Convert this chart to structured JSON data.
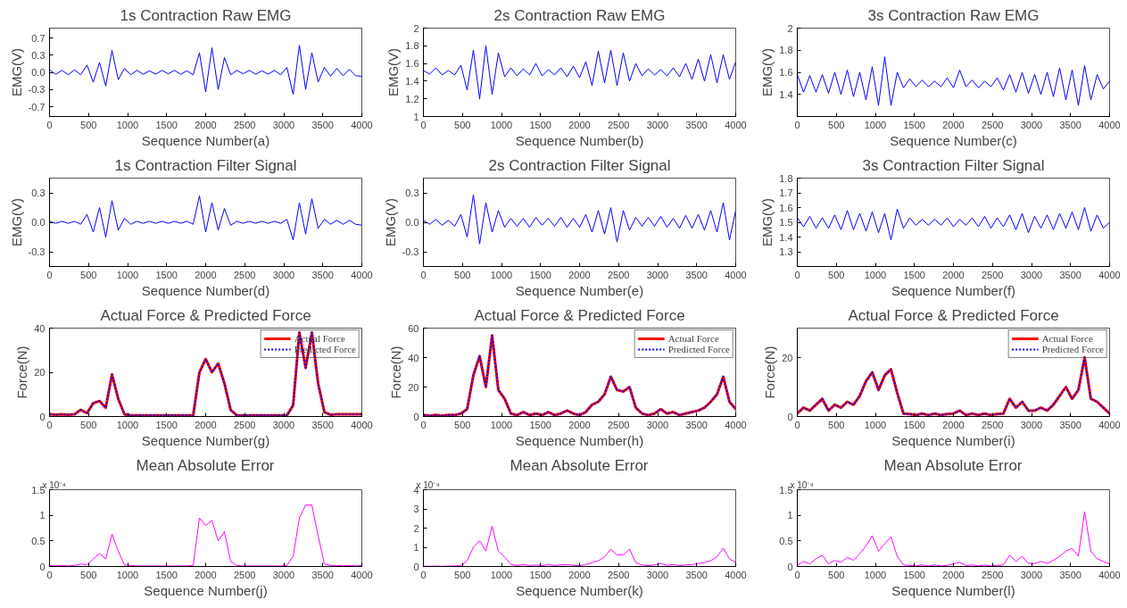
{
  "chart_data": [
    {
      "type": "line",
      "title": "1s Contraction Raw EMG",
      "xlabel": "Sequence Number(a)",
      "ylabel": "EMG(V)",
      "xlim": [
        0,
        4000
      ],
      "xticks": [
        0,
        500,
        1000,
        1500,
        2000,
        2500,
        3000,
        3500,
        4000
      ],
      "ylim": [
        -0.9,
        0.9
      ],
      "yticks": [
        {
          "value": -0.7,
          "label": "-0.7"
        },
        {
          "value": -0.35,
          "label": "-0.3"
        },
        {
          "value": 0,
          "label": "0.0"
        },
        {
          "value": 0.35,
          "label": "0.3"
        },
        {
          "value": 0.7,
          "label": "0.7"
        }
      ],
      "grid": false,
      "legend": false,
      "x": [
        0,
        80,
        160,
        240,
        320,
        400,
        480,
        560,
        640,
        720,
        800,
        880,
        960,
        1040,
        1120,
        1200,
        1280,
        1360,
        1440,
        1520,
        1600,
        1680,
        1760,
        1840,
        1920,
        2000,
        2080,
        2160,
        2240,
        2320,
        2400,
        2480,
        2560,
        2640,
        2720,
        2800,
        2880,
        2960,
        3040,
        3120,
        3200,
        3280,
        3360,
        3440,
        3520,
        3600,
        3680,
        3760,
        3840,
        3920,
        4000
      ],
      "series": [
        {
          "color": "#0000ff",
          "values": [
            0.05,
            -0.04,
            0.04,
            -0.05,
            0.05,
            -0.05,
            0.15,
            -0.2,
            0.2,
            -0.28,
            0.45,
            -0.15,
            0.08,
            -0.05,
            0.04,
            -0.04,
            0.03,
            -0.04,
            0.04,
            -0.03,
            0.04,
            -0.04,
            0.03,
            -0.05,
            0.4,
            -0.4,
            0.5,
            -0.35,
            0.3,
            -0.05,
            0.04,
            -0.03,
            0.04,
            -0.04,
            0.03,
            -0.04,
            0.04,
            -0.05,
            0.1,
            -0.45,
            0.55,
            -0.35,
            0.4,
            -0.2,
            0.1,
            -0.08,
            0.08,
            -0.07,
            0.06,
            -0.07,
            -0.08
          ]
        }
      ]
    },
    {
      "type": "line",
      "title": "2s Contraction Raw EMG",
      "xlabel": "Sequence Number(b)",
      "ylabel": "EMG(V)",
      "xlim": [
        0,
        4000
      ],
      "xticks": [
        0,
        500,
        1000,
        1500,
        2000,
        2500,
        3000,
        3500,
        4000
      ],
      "ylim": [
        1,
        2
      ],
      "yticks": [
        1,
        1.2,
        1.4,
        1.6,
        1.8,
        2
      ],
      "grid": false,
      "legend": false,
      "x": [
        0,
        80,
        160,
        240,
        320,
        400,
        480,
        560,
        640,
        720,
        800,
        880,
        960,
        1040,
        1120,
        1200,
        1280,
        1360,
        1440,
        1520,
        1600,
        1680,
        1760,
        1840,
        1920,
        2000,
        2080,
        2160,
        2240,
        2320,
        2400,
        2480,
        2560,
        2640,
        2720,
        2800,
        2880,
        2960,
        3040,
        3120,
        3200,
        3280,
        3360,
        3440,
        3520,
        3600,
        3680,
        3760,
        3840,
        3920,
        4000
      ],
      "series": [
        {
          "color": "#0000ff",
          "values": [
            1.52,
            1.48,
            1.55,
            1.47,
            1.52,
            1.47,
            1.58,
            1.3,
            1.75,
            1.2,
            1.8,
            1.25,
            1.72,
            1.45,
            1.55,
            1.46,
            1.54,
            1.47,
            1.6,
            1.46,
            1.53,
            1.47,
            1.55,
            1.45,
            1.57,
            1.44,
            1.62,
            1.35,
            1.74,
            1.38,
            1.75,
            1.35,
            1.72,
            1.4,
            1.6,
            1.46,
            1.54,
            1.47,
            1.53,
            1.46,
            1.55,
            1.45,
            1.6,
            1.42,
            1.65,
            1.4,
            1.7,
            1.38,
            1.7,
            1.42,
            1.62
          ]
        }
      ]
    },
    {
      "type": "line",
      "title": "3s Contraction Raw EMG",
      "xlabel": "Sequence Number(c)",
      "ylabel": "EMG(V)",
      "xlim": [
        0,
        4000
      ],
      "xticks": [
        0,
        500,
        1000,
        1500,
        2000,
        2500,
        3000,
        3500,
        4000
      ],
      "ylim": [
        1.2,
        2
      ],
      "yticks": [
        1.4,
        1.6,
        1.8,
        2
      ],
      "grid": false,
      "legend": false,
      "x": [
        0,
        80,
        160,
        240,
        320,
        400,
        480,
        560,
        640,
        720,
        800,
        880,
        960,
        1040,
        1120,
        1200,
        1280,
        1360,
        1440,
        1520,
        1600,
        1680,
        1760,
        1840,
        1920,
        2000,
        2080,
        2160,
        2240,
        2320,
        2400,
        2480,
        2560,
        2640,
        2720,
        2800,
        2880,
        2960,
        3040,
        3120,
        3200,
        3280,
        3360,
        3440,
        3520,
        3600,
        3680,
        3760,
        3840,
        3920,
        4000
      ],
      "series": [
        {
          "color": "#0000ff",
          "values": [
            1.58,
            1.42,
            1.57,
            1.42,
            1.58,
            1.41,
            1.6,
            1.4,
            1.62,
            1.38,
            1.6,
            1.35,
            1.65,
            1.3,
            1.74,
            1.3,
            1.6,
            1.46,
            1.54,
            1.47,
            1.53,
            1.47,
            1.52,
            1.47,
            1.55,
            1.46,
            1.62,
            1.47,
            1.53,
            1.46,
            1.52,
            1.47,
            1.55,
            1.44,
            1.58,
            1.42,
            1.6,
            1.41,
            1.58,
            1.4,
            1.6,
            1.38,
            1.64,
            1.35,
            1.62,
            1.3,
            1.66,
            1.35,
            1.58,
            1.45,
            1.52
          ]
        }
      ]
    },
    {
      "type": "line",
      "title": "1s Contraction Filter Signal",
      "xlabel": "Sequence Number(d)",
      "ylabel": "EMG(V)",
      "xlim": [
        0,
        4000
      ],
      "xticks": [
        0,
        500,
        1000,
        1500,
        2000,
        2500,
        3000,
        3500,
        4000
      ],
      "ylim": [
        -0.45,
        0.45
      ],
      "yticks": [
        {
          "value": -0.3,
          "label": "-0.3"
        },
        {
          "value": 0,
          "label": "0.0"
        },
        {
          "value": 0.3,
          "label": "0.3"
        }
      ],
      "grid": false,
      "legend": false,
      "x": [
        0,
        80,
        160,
        240,
        320,
        400,
        480,
        560,
        640,
        720,
        800,
        880,
        960,
        1040,
        1120,
        1200,
        1280,
        1360,
        1440,
        1520,
        1600,
        1680,
        1760,
        1840,
        1920,
        2000,
        2080,
        2160,
        2240,
        2320,
        2400,
        2480,
        2560,
        2640,
        2720,
        2800,
        2880,
        2960,
        3040,
        3120,
        3200,
        3280,
        3360,
        3440,
        3520,
        3600,
        3680,
        3760,
        3840,
        3920,
        4000
      ],
      "series": [
        {
          "color": "#0000ff",
          "values": [
            0.01,
            -0.01,
            0.01,
            -0.01,
            0.01,
            -0.02,
            0.08,
            -0.1,
            0.15,
            -0.15,
            0.22,
            -0.08,
            0.04,
            -0.02,
            0.01,
            -0.01,
            0.01,
            -0.01,
            0.01,
            -0.01,
            0.01,
            -0.01,
            0.01,
            -0.02,
            0.27,
            -0.1,
            0.2,
            -0.08,
            0.14,
            -0.03,
            0.01,
            -0.01,
            0.01,
            -0.01,
            0.01,
            -0.01,
            0.01,
            -0.01,
            0.03,
            -0.18,
            0.2,
            -0.12,
            0.24,
            -0.06,
            0.03,
            -0.02,
            0.02,
            -0.02,
            0.02,
            -0.02,
            -0.03
          ]
        }
      ]
    },
    {
      "type": "line",
      "title": "2s Contraction Filter Signal",
      "xlabel": "Sequence Number(e)",
      "ylabel": "EMG(V)",
      "xlim": [
        0,
        4000
      ],
      "xticks": [
        0,
        500,
        1000,
        1500,
        2000,
        2500,
        3000,
        3500,
        4000
      ],
      "ylim": [
        -0.45,
        0.45
      ],
      "yticks": [
        {
          "value": -0.3,
          "label": "-0.3"
        },
        {
          "value": 0,
          "label": "0.0"
        },
        {
          "value": 0.3,
          "label": "0.3"
        }
      ],
      "grid": false,
      "legend": false,
      "x": [
        0,
        80,
        160,
        240,
        320,
        400,
        480,
        560,
        640,
        720,
        800,
        880,
        960,
        1040,
        1120,
        1200,
        1280,
        1360,
        1440,
        1520,
        1600,
        1680,
        1760,
        1840,
        1920,
        2000,
        2080,
        2160,
        2240,
        2320,
        2400,
        2480,
        2560,
        2640,
        2720,
        2800,
        2880,
        2960,
        3040,
        3120,
        3200,
        3280,
        3360,
        3440,
        3520,
        3600,
        3680,
        3760,
        3840,
        3920,
        4000
      ],
      "series": [
        {
          "color": "#0000ff",
          "values": [
            0.02,
            -0.02,
            0.03,
            -0.03,
            0.02,
            -0.04,
            0.08,
            -0.15,
            0.28,
            -0.22,
            0.2,
            -0.1,
            0.12,
            -0.05,
            0.04,
            -0.04,
            0.04,
            -0.05,
            0.05,
            -0.03,
            0.04,
            -0.04,
            0.05,
            -0.05,
            0.04,
            -0.05,
            0.08,
            -0.1,
            0.12,
            -0.12,
            0.15,
            -0.2,
            0.12,
            -0.08,
            0.05,
            -0.04,
            0.05,
            -0.04,
            0.06,
            -0.05,
            0.04,
            -0.06,
            0.07,
            -0.06,
            0.08,
            -0.08,
            0.12,
            -0.1,
            0.2,
            -0.18,
            0.12
          ]
        }
      ]
    },
    {
      "type": "line",
      "title": "3s Contraction Filter Signal",
      "xlabel": "Sequence Number(f)",
      "ylabel": "EMG(V)",
      "xlim": [
        0,
        4000
      ],
      "xticks": [
        0,
        500,
        1000,
        1500,
        2000,
        2500,
        3000,
        3500,
        4000
      ],
      "ylim": [
        1.2,
        1.8
      ],
      "yticks": [
        1.3,
        1.4,
        1.5,
        1.6,
        1.7,
        1.8
      ],
      "grid": false,
      "legend": false,
      "x": [
        0,
        80,
        160,
        240,
        320,
        400,
        480,
        560,
        640,
        720,
        800,
        880,
        960,
        1040,
        1120,
        1200,
        1280,
        1360,
        1440,
        1520,
        1600,
        1680,
        1760,
        1840,
        1920,
        2000,
        2080,
        2160,
        2240,
        2320,
        2400,
        2480,
        2560,
        2640,
        2720,
        2800,
        2880,
        2960,
        3040,
        3120,
        3200,
        3280,
        3360,
        3440,
        3520,
        3600,
        3680,
        3760,
        3840,
        3920,
        4000
      ],
      "series": [
        {
          "color": "#0000ff",
          "values": [
            1.53,
            1.47,
            1.54,
            1.46,
            1.53,
            1.46,
            1.55,
            1.45,
            1.58,
            1.45,
            1.56,
            1.44,
            1.57,
            1.43,
            1.56,
            1.38,
            1.59,
            1.46,
            1.53,
            1.48,
            1.52,
            1.48,
            1.52,
            1.48,
            1.53,
            1.47,
            1.52,
            1.48,
            1.53,
            1.47,
            1.54,
            1.46,
            1.53,
            1.47,
            1.55,
            1.45,
            1.56,
            1.43,
            1.54,
            1.46,
            1.55,
            1.45,
            1.56,
            1.46,
            1.57,
            1.45,
            1.6,
            1.44,
            1.55,
            1.46,
            1.5
          ]
        }
      ]
    },
    {
      "type": "line",
      "title": "Actual Force & Predicted Force",
      "xlabel": "Sequence Number(g)",
      "ylabel": "Force(N)",
      "xlim": [
        0,
        4000
      ],
      "xticks": [
        0,
        500,
        1000,
        1500,
        2000,
        2500,
        3000,
        3500,
        4000
      ],
      "ylim": [
        0,
        40
      ],
      "yticks": [
        0,
        20,
        40
      ],
      "grid": false,
      "legend": "top right",
      "x": [
        0,
        80,
        160,
        240,
        320,
        400,
        480,
        560,
        640,
        720,
        800,
        880,
        960,
        1040,
        1120,
        1200,
        1280,
        1360,
        1440,
        1520,
        1600,
        1680,
        1760,
        1840,
        1920,
        2000,
        2080,
        2160,
        2240,
        2320,
        2400,
        2480,
        2560,
        2640,
        2720,
        2800,
        2880,
        2960,
        3040,
        3120,
        3200,
        3280,
        3360,
        3440,
        3520,
        3600,
        3680,
        3760,
        3840,
        3920,
        4000
      ],
      "series": [
        {
          "name": "Actual Force",
          "color": "#ff0000",
          "line_style": "solid",
          "values": [
            1,
            0.8,
            1,
            0.8,
            1,
            3,
            1.5,
            6,
            7,
            4,
            19,
            8,
            1,
            0.5,
            0.5,
            0.5,
            0.5,
            0.5,
            0.5,
            0.5,
            0.5,
            0.5,
            0.5,
            0.5,
            20,
            26,
            20,
            24,
            15,
            3,
            0.5,
            0.5,
            0.5,
            0.5,
            0.5,
            0.5,
            0.5,
            0.5,
            0.5,
            5,
            38,
            22,
            38,
            15,
            2,
            0.8,
            1,
            1,
            1,
            1,
            1
          ]
        },
        {
          "name": "Predicted Force",
          "color": "#0000ff",
          "line_style": "dotted",
          "values": [
            1,
            0.8,
            1,
            0.8,
            1,
            3,
            1.5,
            6,
            7,
            4,
            19,
            8,
            1,
            0.5,
            0.5,
            0.5,
            0.5,
            0.5,
            0.5,
            0.5,
            0.5,
            0.5,
            0.5,
            0.5,
            20,
            26,
            20,
            24,
            15,
            3,
            0.5,
            0.5,
            0.5,
            0.5,
            0.5,
            0.5,
            0.5,
            0.5,
            0.5,
            5,
            38,
            22,
            38,
            15,
            2,
            0.8,
            1,
            1,
            1,
            1,
            1
          ]
        }
      ]
    },
    {
      "type": "line",
      "title": "Actual Force & Predicted Force",
      "xlabel": "Sequence Number(h)",
      "ylabel": "Force(N)",
      "xlim": [
        0,
        4000
      ],
      "xticks": [
        0,
        500,
        1000,
        1500,
        2000,
        2500,
        3000,
        3500,
        4000
      ],
      "ylim": [
        0,
        60
      ],
      "yticks": [
        0,
        20,
        40,
        60
      ],
      "grid": false,
      "legend": "top right",
      "x": [
        0,
        80,
        160,
        240,
        320,
        400,
        480,
        560,
        640,
        720,
        800,
        880,
        960,
        1040,
        1120,
        1200,
        1280,
        1360,
        1440,
        1520,
        1600,
        1680,
        1760,
        1840,
        1920,
        2000,
        2080,
        2160,
        2240,
        2320,
        2400,
        2480,
        2560,
        2640,
        2720,
        2800,
        2880,
        2960,
        3040,
        3120,
        3200,
        3280,
        3360,
        3440,
        3520,
        3600,
        3680,
        3760,
        3840,
        3920,
        4000
      ],
      "series": [
        {
          "name": "Actual Force",
          "color": "#ff0000",
          "line_style": "solid",
          "values": [
            1,
            0.5,
            1,
            0.5,
            1,
            1,
            2,
            5,
            28,
            41,
            20,
            55,
            18,
            12,
            2,
            1,
            3,
            1,
            2,
            1,
            3,
            1,
            2,
            4,
            2,
            1,
            3,
            8,
            10,
            15,
            27,
            18,
            17,
            20,
            6,
            2,
            1,
            2,
            5,
            2,
            3,
            1,
            2,
            3,
            4,
            6,
            10,
            15,
            27,
            10,
            5
          ]
        },
        {
          "name": "Predicted Force",
          "color": "#0000ff",
          "line_style": "dotted",
          "values": [
            1,
            0.5,
            1,
            0.5,
            1,
            1,
            2,
            5,
            28,
            41,
            20,
            55,
            18,
            12,
            2,
            1,
            3,
            1,
            2,
            1,
            3,
            1,
            2,
            4,
            2,
            1,
            3,
            8,
            10,
            15,
            27,
            18,
            17,
            20,
            6,
            2,
            1,
            2,
            5,
            2,
            3,
            1,
            2,
            3,
            4,
            6,
            10,
            15,
            27,
            10,
            5
          ]
        }
      ]
    },
    {
      "type": "line",
      "title": "Actual Force & Predicted Force",
      "xlabel": "Sequence Number(i)",
      "ylabel": "Force(N)",
      "xlim": [
        0,
        4000
      ],
      "xticks": [
        0,
        500,
        1000,
        1500,
        2000,
        2500,
        3000,
        3500,
        4000
      ],
      "ylim": [
        0,
        30
      ],
      "yticks": [
        0,
        20
      ],
      "grid": false,
      "legend": "top right",
      "x": [
        0,
        80,
        160,
        240,
        320,
        400,
        480,
        560,
        640,
        720,
        800,
        880,
        960,
        1040,
        1120,
        1200,
        1280,
        1360,
        1440,
        1520,
        1600,
        1680,
        1760,
        1840,
        1920,
        2000,
        2080,
        2160,
        2240,
        2320,
        2400,
        2480,
        2560,
        2640,
        2720,
        2800,
        2880,
        2960,
        3040,
        3120,
        3200,
        3280,
        3360,
        3440,
        3520,
        3600,
        3680,
        3760,
        3840,
        3920,
        4000
      ],
      "series": [
        {
          "name": "Actual Force",
          "color": "#ff0000",
          "line_style": "solid",
          "values": [
            1,
            3,
            2,
            4,
            6,
            2,
            4,
            3,
            5,
            4,
            7,
            12,
            15,
            9,
            14,
            16,
            8,
            1,
            0.8,
            0.5,
            1,
            0.5,
            1,
            0.5,
            0.8,
            1,
            2,
            0.5,
            1,
            0.5,
            1,
            0.5,
            0.8,
            1,
            6,
            3,
            5,
            2,
            2,
            3,
            2,
            4,
            7,
            10,
            6,
            9,
            20,
            6,
            5,
            3,
            1
          ]
        },
        {
          "name": "Predicted Force",
          "color": "#0000ff",
          "line_style": "dotted",
          "values": [
            1,
            3,
            2,
            4,
            6,
            2,
            4,
            3,
            5,
            4,
            7,
            12,
            15,
            9,
            14,
            16,
            8,
            1,
            0.8,
            0.5,
            1,
            0.5,
            1,
            0.5,
            0.8,
            1,
            2,
            0.5,
            1,
            0.5,
            1,
            0.5,
            0.8,
            1,
            6,
            3,
            5,
            2,
            2,
            3,
            2,
            4,
            7,
            10,
            6,
            9,
            20,
            6,
            5,
            3,
            1
          ]
        }
      ]
    },
    {
      "type": "line",
      "title": "Mean Absolute Error",
      "xlabel": "Sequence Number(j)",
      "xlim": [
        0,
        4000
      ],
      "xticks": [
        0,
        500,
        1000,
        1500,
        2000,
        2500,
        3000,
        3500,
        4000
      ],
      "ylim": [
        0,
        1.5
      ],
      "yticks": [
        0,
        0.5,
        1,
        1.5
      ],
      "grid": false,
      "legend": false,
      "annotations": [
        "x 10⁻⁴"
      ],
      "x": [
        0,
        80,
        160,
        240,
        320,
        400,
        480,
        560,
        640,
        720,
        800,
        880,
        960,
        1040,
        1120,
        1200,
        1280,
        1360,
        1440,
        1520,
        1600,
        1680,
        1760,
        1840,
        1920,
        2000,
        2080,
        2160,
        2240,
        2320,
        2400,
        2480,
        2560,
        2640,
        2720,
        2800,
        2880,
        2960,
        3040,
        3120,
        3200,
        3280,
        3360,
        3440,
        3520,
        3600,
        3680,
        3760,
        3840,
        3920,
        4000
      ],
      "series": [
        {
          "color": "#ff00ff",
          "values": [
            0.02,
            0.01,
            0.02,
            0.01,
            0.02,
            0.05,
            0.03,
            0.15,
            0.25,
            0.15,
            0.63,
            0.3,
            0.03,
            0.02,
            0.01,
            0.01,
            0.01,
            0.01,
            0.01,
            0.01,
            0.01,
            0.01,
            0.01,
            0.02,
            0.95,
            0.8,
            0.9,
            0.5,
            0.68,
            0.1,
            0.02,
            0.01,
            0.01,
            0.01,
            0.01,
            0.01,
            0.01,
            0.01,
            0.02,
            0.2,
            0.95,
            1.2,
            1.2,
            0.6,
            0.05,
            0.02,
            0.02,
            0.01,
            0.02,
            0.01,
            0.02
          ]
        }
      ]
    },
    {
      "type": "line",
      "title": "Mean Absolute Error",
      "xlabel": "Sequence Number(k)",
      "xlim": [
        0,
        4000
      ],
      "xticks": [
        0,
        500,
        1000,
        1500,
        2000,
        2500,
        3000,
        3500,
        4000
      ],
      "ylim": [
        0,
        4
      ],
      "yticks": [
        0,
        1,
        2,
        3,
        4
      ],
      "grid": false,
      "legend": false,
      "annotations": [
        "x 10⁻⁴"
      ],
      "x": [
        0,
        80,
        160,
        240,
        320,
        400,
        480,
        560,
        640,
        720,
        800,
        880,
        960,
        1040,
        1120,
        1200,
        1280,
        1360,
        1440,
        1520,
        1600,
        1680,
        1760,
        1840,
        1920,
        2000,
        2080,
        2160,
        2240,
        2320,
        2400,
        2480,
        2560,
        2640,
        2720,
        2800,
        2880,
        2960,
        3040,
        3120,
        3200,
        3280,
        3360,
        3440,
        3520,
        3600,
        3680,
        3760,
        3840,
        3920,
        4000
      ],
      "series": [
        {
          "color": "#ff00ff",
          "values": [
            0.02,
            0.01,
            0.02,
            0.01,
            0.02,
            0.03,
            0.05,
            0.3,
            1,
            1.35,
            0.8,
            2.1,
            0.8,
            0.5,
            0.1,
            0.05,
            0.1,
            0.05,
            0.08,
            0.04,
            0.1,
            0.05,
            0.08,
            0.1,
            0.06,
            0.04,
            0.1,
            0.2,
            0.3,
            0.5,
            0.9,
            0.6,
            0.6,
            0.9,
            0.2,
            0.08,
            0.05,
            0.08,
            0.15,
            0.06,
            0.1,
            0.05,
            0.08,
            0.1,
            0.15,
            0.2,
            0.3,
            0.5,
            0.95,
            0.4,
            0.2
          ]
        }
      ]
    },
    {
      "type": "line",
      "title": "Mean Absolute Error",
      "xlabel": "Sequence Number(l)",
      "xlim": [
        0,
        4000
      ],
      "xticks": [
        0,
        500,
        1000,
        1500,
        2000,
        2500,
        3000,
        3500,
        4000
      ],
      "ylim": [
        0,
        1.5
      ],
      "yticks": [
        0,
        0.5,
        1,
        1.5
      ],
      "grid": false,
      "legend": false,
      "annotations": [
        "x 10⁻⁴"
      ],
      "x": [
        0,
        80,
        160,
        240,
        320,
        400,
        480,
        560,
        640,
        720,
        800,
        880,
        960,
        1040,
        1120,
        1200,
        1280,
        1360,
        1440,
        1520,
        1600,
        1680,
        1760,
        1840,
        1920,
        2000,
        2080,
        2160,
        2240,
        2320,
        2400,
        2480,
        2560,
        2640,
        2720,
        2800,
        2880,
        2960,
        3040,
        3120,
        3200,
        3280,
        3360,
        3440,
        3520,
        3600,
        3680,
        3760,
        3840,
        3920,
        4000
      ],
      "series": [
        {
          "color": "#ff00ff",
          "values": [
            0.02,
            0.1,
            0.05,
            0.15,
            0.22,
            0.05,
            0.12,
            0.08,
            0.18,
            0.12,
            0.25,
            0.4,
            0.6,
            0.3,
            0.45,
            0.58,
            0.2,
            0.03,
            0.02,
            0.01,
            0.03,
            0.01,
            0.03,
            0.01,
            0.02,
            0.05,
            0.08,
            0.02,
            0.03,
            0.01,
            0.03,
            0.01,
            0.02,
            0.03,
            0.22,
            0.1,
            0.2,
            0.06,
            0.06,
            0.1,
            0.06,
            0.12,
            0.2,
            0.3,
            0.35,
            0.2,
            1.07,
            0.3,
            0.15,
            0.1,
            0.05
          ]
        }
      ]
    }
  ]
}
